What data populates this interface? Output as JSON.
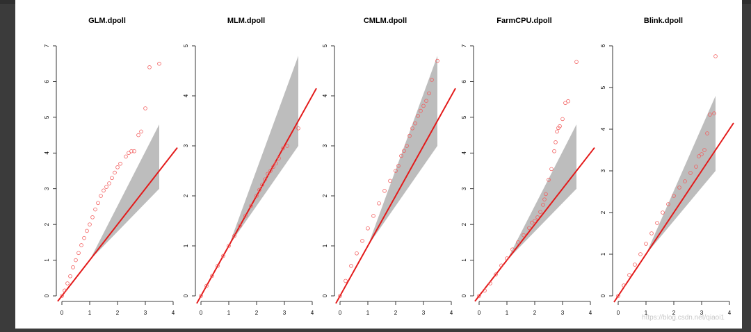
{
  "watermark": "https://blog.csdn.net/qiaoi1",
  "colors": {
    "points": "#f25d5d",
    "reference_line": "#e31a1a",
    "confidence_band": "#bdbdbd"
  },
  "chart_data": [
    {
      "type": "scatter",
      "title": "GLM.dpoll",
      "xlim": [
        0,
        4
      ],
      "ylim": [
        0,
        7
      ],
      "xticks": [
        "0",
        "1",
        "2",
        "3",
        "4"
      ],
      "yticks": [
        "0",
        "1",
        "2",
        "3",
        "4",
        "5",
        "6",
        "7"
      ],
      "band_top": 4.8,
      "band_bottom": 3.0,
      "band_end_x": 3.5,
      "points": [
        [
          0,
          0
        ],
        [
          0.1,
          0.15
        ],
        [
          0.2,
          0.35
        ],
        [
          0.3,
          0.55
        ],
        [
          0.4,
          0.8
        ],
        [
          0.5,
          1.0
        ],
        [
          0.6,
          1.2
        ],
        [
          0.7,
          1.42
        ],
        [
          0.8,
          1.62
        ],
        [
          0.9,
          1.82
        ],
        [
          1.0,
          2.0
        ],
        [
          1.1,
          2.2
        ],
        [
          1.2,
          2.42
        ],
        [
          1.3,
          2.6
        ],
        [
          1.4,
          2.8
        ],
        [
          1.5,
          2.95
        ],
        [
          1.6,
          3.05
        ],
        [
          1.7,
          3.15
        ],
        [
          1.8,
          3.3
        ],
        [
          1.9,
          3.45
        ],
        [
          2.0,
          3.6
        ],
        [
          2.1,
          3.7
        ],
        [
          2.3,
          3.9
        ],
        [
          2.4,
          4.0
        ],
        [
          2.5,
          4.05
        ],
        [
          2.6,
          4.05
        ],
        [
          2.75,
          4.5
        ],
        [
          2.85,
          4.6
        ],
        [
          3.0,
          5.25
        ],
        [
          3.15,
          6.4
        ],
        [
          3.5,
          6.5
        ]
      ]
    },
    {
      "type": "scatter",
      "title": "MLM.dpoll",
      "xlim": [
        0,
        4
      ],
      "ylim": [
        0,
        5
      ],
      "xticks": [
        "0",
        "1",
        "2",
        "3",
        "4"
      ],
      "yticks": [
        "0",
        "1",
        "2",
        "3",
        "4",
        "5"
      ],
      "band_top": 4.8,
      "band_bottom": 3.0,
      "band_end_x": 3.5,
      "points": [
        [
          0,
          0
        ],
        [
          0.2,
          0.2
        ],
        [
          0.4,
          0.4
        ],
        [
          0.6,
          0.6
        ],
        [
          0.8,
          0.8
        ],
        [
          1.0,
          1.0
        ],
        [
          1.2,
          1.2
        ],
        [
          1.4,
          1.4
        ],
        [
          1.6,
          1.6
        ],
        [
          1.8,
          1.8
        ],
        [
          2.0,
          2.0
        ],
        [
          2.1,
          2.12
        ],
        [
          2.2,
          2.22
        ],
        [
          2.3,
          2.33
        ],
        [
          2.4,
          2.44
        ],
        [
          2.5,
          2.5
        ],
        [
          2.6,
          2.58
        ],
        [
          2.7,
          2.65
        ],
        [
          2.8,
          2.75
        ],
        [
          2.95,
          2.95
        ],
        [
          3.1,
          3.0
        ],
        [
          3.5,
          3.35
        ]
      ]
    },
    {
      "type": "scatter",
      "title": "CMLM.dpoll",
      "xlim": [
        0,
        4
      ],
      "ylim": [
        0,
        5
      ],
      "xticks": [
        "0",
        "1",
        "2",
        "3",
        "4"
      ],
      "yticks": [
        "0",
        "1",
        "2",
        "3",
        "4",
        "5"
      ],
      "band_top": 4.8,
      "band_bottom": 3.0,
      "band_end_x": 3.5,
      "points": [
        [
          0,
          0
        ],
        [
          0.2,
          0.3
        ],
        [
          0.4,
          0.6
        ],
        [
          0.6,
          0.85
        ],
        [
          0.8,
          1.1
        ],
        [
          1.0,
          1.35
        ],
        [
          1.2,
          1.6
        ],
        [
          1.4,
          1.85
        ],
        [
          1.6,
          2.1
        ],
        [
          1.8,
          2.3
        ],
        [
          2.0,
          2.5
        ],
        [
          2.1,
          2.6
        ],
        [
          2.2,
          2.8
        ],
        [
          2.3,
          2.9
        ],
        [
          2.4,
          3.0
        ],
        [
          2.5,
          3.2
        ],
        [
          2.6,
          3.35
        ],
        [
          2.7,
          3.45
        ],
        [
          2.8,
          3.6
        ],
        [
          2.9,
          3.7
        ],
        [
          3.0,
          3.8
        ],
        [
          3.1,
          3.9
        ],
        [
          3.2,
          4.05
        ],
        [
          3.3,
          4.32
        ],
        [
          3.5,
          4.7
        ]
      ]
    },
    {
      "type": "scatter",
      "title": "FarmCPU.dpoll",
      "xlim": [
        0,
        4
      ],
      "ylim": [
        0,
        7
      ],
      "xticks": [
        "0",
        "1",
        "2",
        "3",
        "4"
      ],
      "yticks": [
        "0",
        "1",
        "2",
        "3",
        "4",
        "5",
        "6",
        "7"
      ],
      "band_top": 4.8,
      "band_bottom": 3.0,
      "band_end_x": 3.5,
      "points": [
        [
          0,
          0
        ],
        [
          0.2,
          0.15
        ],
        [
          0.4,
          0.35
        ],
        [
          0.6,
          0.6
        ],
        [
          0.8,
          0.85
        ],
        [
          1.0,
          1.05
        ],
        [
          1.2,
          1.3
        ],
        [
          1.4,
          1.5
        ],
        [
          1.6,
          1.7
        ],
        [
          1.8,
          1.9
        ],
        [
          1.9,
          2.05
        ],
        [
          2.0,
          2.1
        ],
        [
          2.1,
          2.2
        ],
        [
          2.2,
          2.35
        ],
        [
          2.3,
          2.55
        ],
        [
          2.35,
          2.7
        ],
        [
          2.4,
          2.85
        ],
        [
          2.5,
          3.25
        ],
        [
          2.6,
          3.55
        ],
        [
          2.7,
          4.05
        ],
        [
          2.75,
          4.3
        ],
        [
          2.8,
          4.6
        ],
        [
          2.85,
          4.7
        ],
        [
          2.9,
          4.75
        ],
        [
          3.0,
          4.95
        ],
        [
          3.1,
          5.4
        ],
        [
          3.2,
          5.45
        ],
        [
          3.5,
          6.55
        ]
      ]
    },
    {
      "type": "scatter",
      "title": "Blink.dpoll",
      "xlim": [
        0,
        4
      ],
      "ylim": [
        0,
        6
      ],
      "xticks": [
        "0",
        "1",
        "2",
        "3",
        "4"
      ],
      "yticks": [
        "0",
        "1",
        "2",
        "3",
        "4",
        "5",
        "6"
      ],
      "band_top": 4.8,
      "band_bottom": 3.0,
      "band_end_x": 3.5,
      "points": [
        [
          0,
          0
        ],
        [
          0.2,
          0.25
        ],
        [
          0.4,
          0.5
        ],
        [
          0.6,
          0.75
        ],
        [
          0.8,
          1.0
        ],
        [
          1.0,
          1.25
        ],
        [
          1.2,
          1.5
        ],
        [
          1.4,
          1.75
        ],
        [
          1.6,
          2.0
        ],
        [
          1.8,
          2.2
        ],
        [
          2.0,
          2.4
        ],
        [
          2.2,
          2.6
        ],
        [
          2.4,
          2.75
        ],
        [
          2.6,
          2.95
        ],
        [
          2.8,
          3.1
        ],
        [
          2.9,
          3.35
        ],
        [
          3.0,
          3.4
        ],
        [
          3.1,
          3.5
        ],
        [
          3.2,
          3.9
        ],
        [
          3.3,
          4.35
        ],
        [
          3.45,
          4.38
        ],
        [
          3.5,
          5.75
        ]
      ]
    }
  ]
}
